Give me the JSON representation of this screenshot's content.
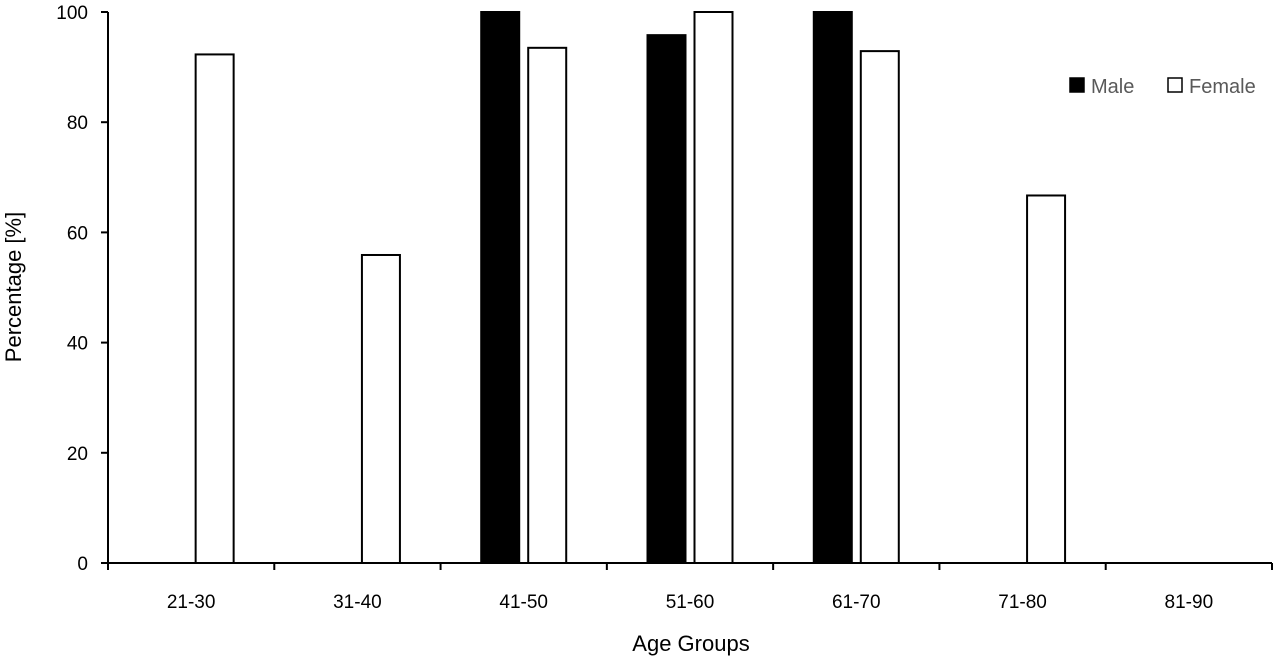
{
  "chart_data": {
    "type": "bar",
    "title": "",
    "xlabel": "Age Groups",
    "ylabel": "Percentage [%]",
    "ylim": [
      0,
      100
    ],
    "yticks": [
      0,
      20,
      40,
      60,
      80,
      100
    ],
    "grid": false,
    "legend_position": "top-right",
    "categories": [
      "21-30",
      "31-40",
      "41-50",
      "51-60",
      "61-70",
      "71-80",
      "81-90"
    ],
    "series": [
      {
        "name": "Male",
        "color": "#000000",
        "values": [
          0,
          0,
          100,
          95.8,
          100,
          0,
          0
        ]
      },
      {
        "name": "Female",
        "color": "#ffffff",
        "values": [
          92.3,
          55.9,
          93.5,
          100,
          92.9,
          66.7,
          0
        ]
      }
    ]
  }
}
